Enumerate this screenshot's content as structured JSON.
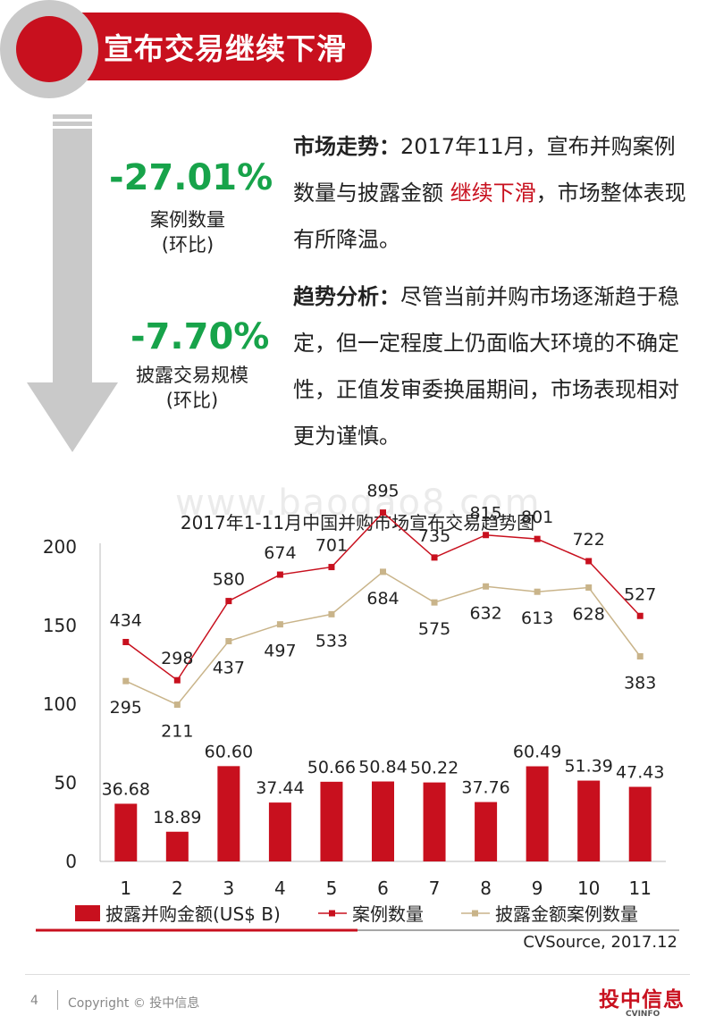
{
  "header": {
    "title": "宣布交易继续下滑"
  },
  "stats": [
    {
      "value": "-27.01%",
      "label1": "案例数量",
      "label2": "(环比)"
    },
    {
      "value": "-7.70%",
      "label1": "披露交易规模",
      "label2": "(环比)"
    }
  ],
  "para1": {
    "lead": "市场走势：",
    "text_a": "2017年11月，宣布并购案例数量与披露金额 ",
    "highlight": "继续下滑",
    "text_b": "，市场整体表现有所降温。"
  },
  "para2": {
    "lead": "趋势分析：",
    "text": "尽管当前并购市场逐渐趋于稳定，但一定程度上仍面临大环境的不确定性，正值发审委换届期间，市场表现相对更为谨慎。"
  },
  "watermark": "www.baogao8.com",
  "chart_title": "2017年1-11月中国并购市场宣布交易趋势图",
  "chart_data": {
    "type": "bar",
    "title": "2017年1-11月中国并购市场宣布交易趋势图",
    "categories": [
      "1",
      "2",
      "3",
      "4",
      "5",
      "6",
      "7",
      "8",
      "9",
      "10",
      "11"
    ],
    "ylim": [
      0,
      200
    ],
    "yticks": [
      "0",
      "50",
      "100",
      "150",
      "200"
    ],
    "series": [
      {
        "name": "披露并购金额(US$ B)",
        "type": "bar",
        "values": [
          36.68,
          18.89,
          60.6,
          37.44,
          50.66,
          50.84,
          50.22,
          37.76,
          60.49,
          51.39,
          47.43
        ],
        "labels": [
          "36.68",
          "18.89",
          "60.60",
          "37.44",
          "50.66",
          "50.84",
          "50.22",
          "37.76",
          "60.49",
          "51.39",
          "47.43"
        ]
      },
      {
        "name": "案例数量",
        "type": "line",
        "values": [
          434,
          298,
          580,
          674,
          701,
          895,
          735,
          815,
          801,
          722,
          527
        ],
        "labels": [
          "434",
          "298",
          "580",
          "674",
          "701",
          "895",
          "735",
          "815",
          "801",
          "722",
          "527"
        ]
      },
      {
        "name": "披露金额案例数量",
        "type": "line",
        "values": [
          295,
          211,
          437,
          497,
          533,
          684,
          575,
          632,
          613,
          628,
          383
        ],
        "labels": [
          "295",
          "211",
          "437",
          "497",
          "533",
          "684",
          "575",
          "632",
          "613",
          "628",
          "383"
        ]
      }
    ],
    "colors": {
      "bar": "#c8101e",
      "line1": "#c8101e",
      "line2": "#c9b48a"
    },
    "legend_position": "bottom"
  },
  "source": "CVSource, 2017.12",
  "footer": {
    "page": "4",
    "copyright": "Copyright © 投中信息",
    "logo": "投中信息",
    "logo_sub": "CVINFO"
  }
}
